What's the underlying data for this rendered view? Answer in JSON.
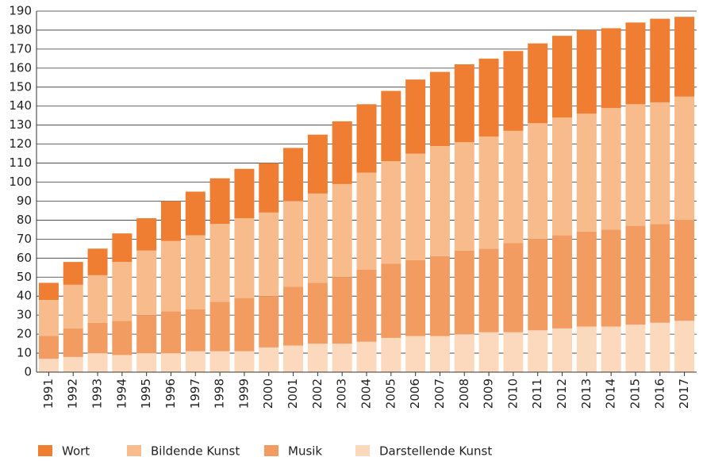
{
  "chart_data": {
    "type": "stacked_bar",
    "categories": [
      "1991",
      "1992",
      "1993",
      "1994",
      "1995",
      "1996",
      "1997",
      "1998",
      "1999",
      "2000",
      "2001",
      "2002",
      "2003",
      "2004",
      "2005",
      "2006",
      "2007",
      "2008",
      "2009",
      "2010",
      "2011",
      "2012",
      "2013",
      "2014",
      "2015",
      "2016",
      "2017"
    ],
    "series": [
      {
        "name": "Wort",
        "color": "#ef7d32",
        "values": [
          9,
          12,
          14,
          15,
          17,
          21,
          23,
          24,
          26,
          26,
          28,
          31,
          33,
          36,
          37,
          39,
          39,
          41,
          41,
          42,
          42,
          43,
          44,
          42,
          43,
          44,
          42
        ]
      },
      {
        "name": "Bildende Kunst",
        "color": "#f8bb8b",
        "values": [
          19,
          23,
          25,
          31,
          34,
          37,
          39,
          41,
          42,
          44,
          45,
          47,
          49,
          51,
          54,
          56,
          58,
          57,
          59,
          59,
          61,
          62,
          62,
          64,
          64,
          64,
          65
        ]
      },
      {
        "name": "Musik",
        "color": "#f39c62",
        "values": [
          12,
          15,
          16,
          18,
          20,
          22,
          22,
          26,
          28,
          27,
          31,
          32,
          35,
          38,
          39,
          40,
          42,
          44,
          44,
          47,
          48,
          49,
          50,
          51,
          52,
          52,
          53
        ]
      },
      {
        "name": "Darstellende Kunst",
        "color": "#fcd9bc",
        "values": [
          7,
          8,
          10,
          9,
          10,
          10,
          11,
          11,
          11,
          13,
          14,
          15,
          15,
          16,
          18,
          19,
          19,
          20,
          21,
          21,
          22,
          23,
          24,
          24,
          25,
          26,
          27
        ]
      }
    ],
    "ylim": [
      0,
      190
    ],
    "yticks": [
      0,
      10,
      20,
      30,
      40,
      50,
      60,
      70,
      80,
      90,
      100,
      110,
      120,
      130,
      140,
      150,
      160,
      170,
      180,
      190
    ],
    "grid": true,
    "legend": "bottom"
  }
}
